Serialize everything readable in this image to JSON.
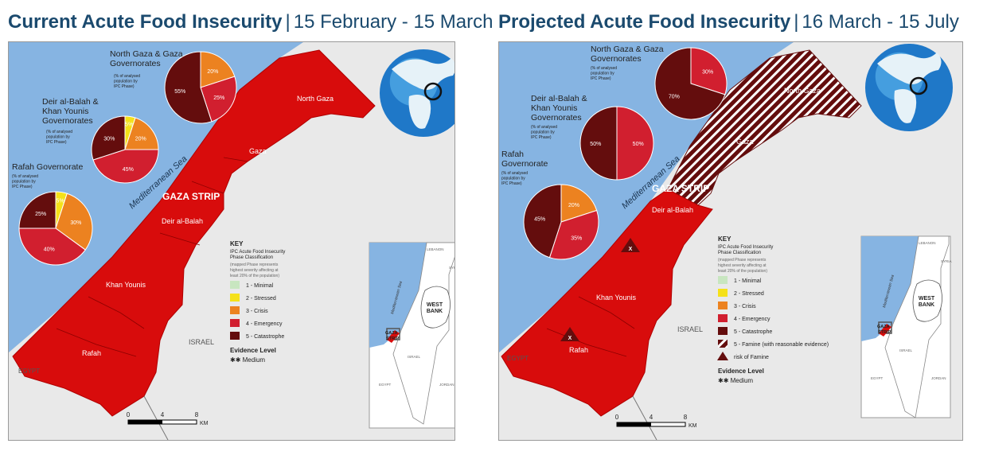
{
  "left_panel": {
    "title_bold": "Current Acute Food Insecurity",
    "separator": "|",
    "dates": "15 February - 15 March",
    "pies": [
      {
        "name_lines": [
          "North Gaza & Gaza",
          "Governorates"
        ],
        "note_lines": [
          "(% of analysed",
          "population by",
          "IPC Phase)"
        ],
        "slices": [
          {
            "phase": 3,
            "value": 20,
            "label": "20%"
          },
          {
            "phase": 4,
            "value": 25,
            "label": "25%"
          },
          {
            "phase": 5,
            "value": 55,
            "label": "55%"
          }
        ]
      },
      {
        "name_lines": [
          "Deir al-Balah &",
          "Khan Younis",
          "Governorates"
        ],
        "note_lines": [
          "(% of analysed",
          "population by",
          "IPC Phase)"
        ],
        "slices": [
          {
            "phase": 2,
            "value": 5,
            "label": "5%"
          },
          {
            "phase": 3,
            "value": 20,
            "label": "20%"
          },
          {
            "phase": 4,
            "value": 45,
            "label": "45%"
          },
          {
            "phase": 5,
            "value": 30,
            "label": "30%"
          }
        ]
      },
      {
        "name_lines": [
          "Rafah  Governorate"
        ],
        "note_lines": [
          "(% of analysed",
          "population by",
          "IPC Phase)"
        ],
        "slices": [
          {
            "phase": 2,
            "value": 5,
            "label": "5%"
          },
          {
            "phase": 3,
            "value": 30,
            "label": "30%"
          },
          {
            "phase": 4,
            "value": 40,
            "label": "40%"
          },
          {
            "phase": 5,
            "value": 25,
            "label": "25%"
          }
        ]
      }
    ],
    "places": {
      "north_gaza": "North Gaza",
      "gaza": "Gaza",
      "deir_al_balah": "Deir al-Balah",
      "khan_younis": "Khan Younis",
      "rafah": "Rafah",
      "gaza_strip": "GAZA STRIP",
      "sea": "Mediterranean Sea",
      "israel": "ISRAEL",
      "egypt": "EGYPT"
    },
    "key": {
      "title": "KEY",
      "subtitle_lines": [
        "IPC Acute Food Insecurity",
        "Phase Classification"
      ],
      "note_lines": [
        "(mapped Phase represents",
        "highest severity affecting at",
        "least 20% of the population)"
      ],
      "items": [
        {
          "label": "1 - Minimal",
          "color": "#c8e6c0"
        },
        {
          "label": "2 - Stressed",
          "color": "#f5e119"
        },
        {
          "label": "3 - Crisis",
          "color": "#ec8220"
        },
        {
          "label": "4 - Emergency",
          "color": "#d11f2f"
        },
        {
          "label": "5 - Catastrophe",
          "color": "#640d0d"
        }
      ],
      "evidence_title": "Evidence Level",
      "evidence_symbol": "✱✱",
      "evidence_value": "Medium"
    },
    "scale": {
      "ticks": [
        "0",
        "4",
        "8"
      ],
      "unit": "KM"
    },
    "inset": {
      "labels": [
        "LEBANON",
        "SYRIA",
        "Mediterranean Sea",
        "WEST",
        "BANK",
        "GAZA",
        "STRIP",
        "ISRAEL",
        "EGYPT",
        "JORDAN"
      ]
    }
  },
  "right_panel": {
    "title_bold": "Projected Acute Food Insecurity",
    "separator": "|",
    "dates": "16 March - 15 July",
    "pies": [
      {
        "name_lines": [
          "North Gaza & Gaza",
          "Governorates"
        ],
        "note_lines": [
          "(% of analysed",
          "population by",
          "IPC Phase)"
        ],
        "slices": [
          {
            "phase": 4,
            "value": 30,
            "label": "30%"
          },
          {
            "phase": 5,
            "value": 70,
            "label": "70%"
          }
        ]
      },
      {
        "name_lines": [
          "Deir al-Balah &",
          "Khan Younis",
          "Governorates"
        ],
        "note_lines": [
          "(% of analysed",
          "population by",
          "IPC Phase)"
        ],
        "slices": [
          {
            "phase": 4,
            "value": 50,
            "label": "50%"
          },
          {
            "phase": 5,
            "value": 50,
            "label": "50%"
          }
        ]
      },
      {
        "name_lines": [
          "Rafah",
          "Governorate"
        ],
        "note_lines": [
          "(% of analysed",
          "population by",
          "IPC Phase)"
        ],
        "slices": [
          {
            "phase": 3,
            "value": 20,
            "label": "20%"
          },
          {
            "phase": 4,
            "value": 35,
            "label": "35%"
          },
          {
            "phase": 5,
            "value": 45,
            "label": "45%"
          }
        ]
      }
    ],
    "places": {
      "north_gaza": "North Gaza",
      "gaza": "Gaza",
      "deir_al_balah": "Deir al-Balah",
      "khan_younis": "Khan Younis",
      "rafah": "Rafah",
      "gaza_strip": "GAZA STRIP",
      "sea": "Mediterranean Sea",
      "israel": "ISRAEL",
      "egypt": "EGYPT",
      "famine_mark": "X"
    },
    "key": {
      "title": "KEY",
      "subtitle_lines": [
        "IPC Acute Food Insecurity",
        "Phase Classification"
      ],
      "note_lines": [
        "(mapped Phase represents",
        "highest severity affecting at",
        "least 20% of the population)"
      ],
      "items": [
        {
          "label": "1 - Minimal",
          "color": "#c8e6c0"
        },
        {
          "label": "2 - Stressed",
          "color": "#f5e119"
        },
        {
          "label": "3 - Crisis",
          "color": "#ec8220"
        },
        {
          "label": "4 - Emergency",
          "color": "#d11f2f"
        },
        {
          "label": "5 - Catastrophe",
          "color": "#640d0d"
        },
        {
          "label": "5 - Famine (with reasonable evidence)",
          "color": "hatch"
        },
        {
          "label": "risk of Famine",
          "color": "triangle"
        }
      ],
      "evidence_title": "Evidence Level",
      "evidence_symbol": "✱✱",
      "evidence_value": "Medium"
    },
    "scale": {
      "ticks": [
        "0",
        "4",
        "8"
      ],
      "unit": "KM"
    },
    "inset": {
      "labels": [
        "LEBANON",
        "SYRIA",
        "Mediterranean Sea",
        "WEST",
        "BANK",
        "GAZA",
        "STRIP",
        "ISRAEL",
        "EGYPT",
        "JORDAN"
      ]
    }
  },
  "phase_colors": {
    "1": "#c8e6c0",
    "2": "#f5e119",
    "3": "#ec8220",
    "4": "#d11f2f",
    "5": "#640d0d"
  },
  "colors": {
    "sea": "#86b4e2",
    "land": "#e9e9e9",
    "emergency_area": "#d80c0c",
    "title": "#1b4a6e"
  }
}
